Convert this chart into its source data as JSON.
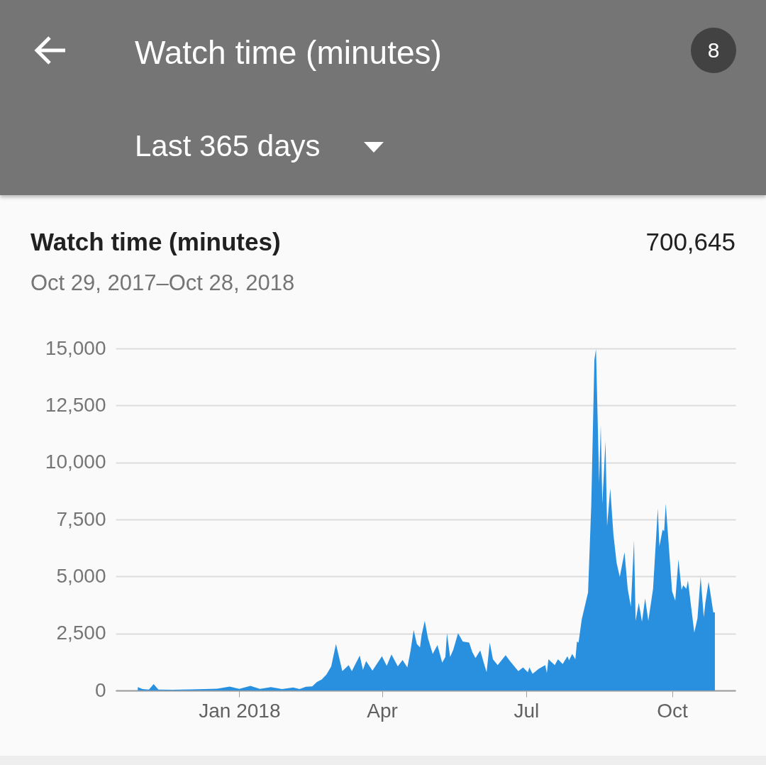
{
  "chart_data": {
    "type": "area",
    "title": "Watch time (minutes)",
    "subtitle": "Oct 29, 2017–Oct 28, 2018",
    "annotations": [
      "Last 365 days",
      "700,645",
      "8"
    ],
    "color": "#2990e0",
    "x": [
      "2017-10-29",
      "2017-11-01",
      "2017-11-05",
      "2017-11-08",
      "2017-11-11",
      "2017-11-20",
      "2017-12-01",
      "2017-12-10",
      "2017-12-18",
      "2017-12-26",
      "2018-01-01",
      "2018-01-08",
      "2018-01-14",
      "2018-01-21",
      "2018-01-28",
      "2018-02-04",
      "2018-02-08",
      "2018-02-12",
      "2018-02-16",
      "2018-02-19",
      "2018-02-22",
      "2018-02-25",
      "2018-02-28",
      "2018-03-03",
      "2018-03-07",
      "2018-03-11",
      "2018-03-13",
      "2018-03-18",
      "2018-03-20",
      "2018-03-22",
      "2018-03-26",
      "2018-04-01",
      "2018-04-04",
      "2018-04-07",
      "2018-04-11",
      "2018-04-14",
      "2018-04-17",
      "2018-04-19",
      "2018-04-21",
      "2018-04-23",
      "2018-04-25",
      "2018-04-26",
      "2018-04-28",
      "2018-04-30",
      "2018-05-03",
      "2018-05-06",
      "2018-05-09",
      "2018-05-11",
      "2018-05-12",
      "2018-05-14",
      "2018-05-16",
      "2018-05-19",
      "2018-05-22",
      "2018-05-26",
      "2018-05-28",
      "2018-05-30",
      "2018-06-02",
      "2018-06-04",
      "2018-06-06",
      "2018-06-08",
      "2018-06-10",
      "2018-06-13",
      "2018-06-18",
      "2018-06-21",
      "2018-06-26",
      "2018-06-29",
      "2018-07-02",
      "2018-07-03",
      "2018-07-05",
      "2018-07-09",
      "2018-07-13",
      "2018-07-14",
      "2018-07-15",
      "2018-07-19",
      "2018-07-21",
      "2018-07-24",
      "2018-07-27",
      "2018-07-28",
      "2018-07-30",
      "2018-08-01",
      "2018-08-02",
      "2018-08-03",
      "2018-08-05",
      "2018-08-09",
      "2018-08-11",
      "2018-08-13",
      "2018-08-14",
      "2018-08-16",
      "2018-08-17",
      "2018-08-18",
      "2018-08-20",
      "2018-08-21",
      "2018-08-23",
      "2018-08-25",
      "2018-08-27",
      "2018-08-29",
      "2018-09-01",
      "2018-09-03",
      "2018-09-05",
      "2018-09-07",
      "2018-09-08",
      "2018-09-10",
      "2018-09-12",
      "2018-09-14",
      "2018-09-16",
      "2018-09-19",
      "2018-09-22",
      "2018-09-23",
      "2018-09-25",
      "2018-09-26",
      "2018-09-27",
      "2018-10-01",
      "2018-10-03",
      "2018-10-05",
      "2018-10-07",
      "2018-10-08",
      "2018-10-10",
      "2018-10-11",
      "2018-10-15",
      "2018-10-17",
      "2018-10-19",
      "2018-10-21",
      "2018-10-22",
      "2018-10-24",
      "2018-10-25",
      "2018-10-27",
      "2018-10-28"
    ],
    "values": [
      150,
      60,
      40,
      280,
      40,
      30,
      50,
      60,
      80,
      170,
      70,
      200,
      70,
      150,
      60,
      130,
      60,
      160,
      180,
      370,
      480,
      700,
      1060,
      2040,
      850,
      1110,
      850,
      1530,
      900,
      1290,
      870,
      1500,
      1080,
      1580,
      1060,
      1340,
      1010,
      1730,
      2650,
      2040,
      1890,
      2430,
      3060,
      2300,
      1600,
      1990,
      1220,
      1470,
      2510,
      1470,
      1790,
      2510,
      2150,
      2100,
      1680,
      1420,
      1760,
      1270,
      800,
      2100,
      1370,
      1110,
      1550,
      1270,
      850,
      1010,
      800,
      1010,
      730,
      960,
      1110,
      770,
      1370,
      1110,
      1370,
      1160,
      1500,
      1320,
      1600,
      1370,
      2150,
      2100,
      3110,
      4300,
      8080,
      14500,
      14970,
      9120,
      11650,
      8190,
      10930,
      7200,
      8860,
      6840,
      5600,
      4980,
      6060,
      4460,
      3680,
      6580,
      3060,
      3840,
      3010,
      4040,
      3060,
      4460,
      7980,
      6320,
      7050,
      6990,
      8190,
      4350,
      3940,
      5750,
      4400,
      4610,
      4460,
      4820,
      2540,
      3160,
      4980,
      3210,
      3840,
      4770,
      4350,
      3420,
      3420
    ],
    "xlim": [
      "2017-10-15",
      "2018-11-10"
    ],
    "xticks": [
      {
        "value": "2018-01-01",
        "label": "Jan 2018"
      },
      {
        "value": "2018-04-01",
        "label": "Apr"
      },
      {
        "value": "2018-07-01",
        "label": "Jul"
      },
      {
        "value": "2018-10-01",
        "label": "Oct"
      }
    ],
    "ylim": [
      0,
      15000
    ],
    "yticks": [
      0,
      {
        "value": 2500,
        "label": "2,500"
      },
      {
        "value": 5000,
        "label": "5,000"
      },
      {
        "value": 7500,
        "label": "7,500"
      },
      {
        "value": 10000,
        "label": "10,000"
      },
      {
        "value": 12500,
        "label": "12,500"
      },
      {
        "value": 15000,
        "label": "15,000"
      }
    ],
    "grid": "y"
  }
}
